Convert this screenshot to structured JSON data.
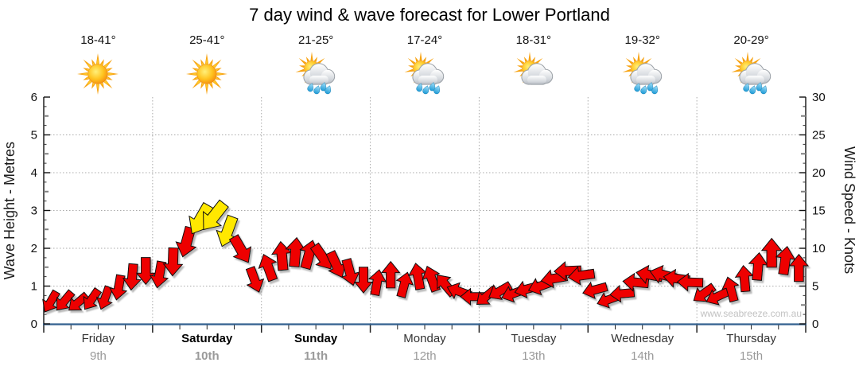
{
  "title": "7 day wind & wave forecast for Lower Portland",
  "watermark": "www.seabreeze.com.au",
  "forecast": [
    {
      "temp_range": "18-41°",
      "icon": "sunny",
      "day": "Friday",
      "date": "9th",
      "weekend": false
    },
    {
      "temp_range": "25-41°",
      "icon": "sunny",
      "day": "Saturday",
      "date": "10th",
      "weekend": true
    },
    {
      "temp_range": "21-25°",
      "icon": "showers",
      "day": "Sunday",
      "date": "11th",
      "weekend": true
    },
    {
      "temp_range": "17-24°",
      "icon": "showers",
      "day": "Monday",
      "date": "12th",
      "weekend": false
    },
    {
      "temp_range": "18-31°",
      "icon": "partly-cloudy",
      "day": "Tuesday",
      "date": "13th",
      "weekend": false
    },
    {
      "temp_range": "19-32°",
      "icon": "showers",
      "day": "Wednesday",
      "date": "14th",
      "weekend": false
    },
    {
      "temp_range": "20-29°",
      "icon": "showers",
      "day": "Thursday",
      "date": "15th",
      "weekend": false
    }
  ],
  "chart_data": {
    "type": "wind-arrow-forecast",
    "title": "7 day wind & wave forecast for Lower Portland",
    "y_left": {
      "label": "Wave Height - Metres",
      "min": 0,
      "max": 6,
      "ticks": [
        0,
        1,
        2,
        3,
        4,
        5,
        6
      ]
    },
    "y_right": {
      "label": "Wind Speed - Knots",
      "min": 0,
      "max": 30,
      "ticks": [
        0,
        5,
        10,
        15,
        20,
        25,
        30
      ]
    },
    "x_days": [
      "Friday 9th",
      "Saturday 10th",
      "Sunday 11th",
      "Monday 12th",
      "Tuesday 13th",
      "Wednesday 14th",
      "Thursday 15th"
    ],
    "grid": {
      "horizontal_dotted_at_metres": [
        1,
        2,
        3,
        4,
        5
      ],
      "vertical_dotted_at_day_boundaries": true
    },
    "points_per_day": 8,
    "wind_points_legend": "each point = [wind_speed_knots, arrow_direction_deg_clockwise_from_up, color r=red y=yellow(strong)]",
    "wind_points": [
      [
        2.9,
        210,
        "r"
      ],
      [
        3,
        220,
        "r"
      ],
      [
        2.8,
        230,
        "r"
      ],
      [
        3.2,
        215,
        "r"
      ],
      [
        3.4,
        200,
        "r"
      ],
      [
        4.8,
        190,
        "r"
      ],
      [
        6.2,
        185,
        "r"
      ],
      [
        7,
        180,
        "r"
      ],
      [
        6.5,
        190,
        "r"
      ],
      [
        8.2,
        182,
        "r"
      ],
      [
        10.8,
        195,
        "r"
      ],
      [
        13.8,
        210,
        "y"
      ],
      [
        14.2,
        218,
        "y"
      ],
      [
        12.2,
        200,
        "y"
      ],
      [
        9.8,
        150,
        "r"
      ],
      [
        5.8,
        160,
        "r"
      ],
      [
        7.5,
        340,
        "r"
      ],
      [
        9,
        355,
        "r"
      ],
      [
        9.5,
        5,
        "r"
      ],
      [
        9.2,
        15,
        "r"
      ],
      [
        8.8,
        145,
        "r"
      ],
      [
        7.8,
        155,
        "r"
      ],
      [
        6.8,
        165,
        "r"
      ],
      [
        5.8,
        180,
        "r"
      ],
      [
        5.5,
        10,
        "r"
      ],
      [
        6.5,
        0,
        "r"
      ],
      [
        5.2,
        15,
        "r"
      ],
      [
        6.3,
        350,
        "r"
      ],
      [
        6,
        340,
        "r"
      ],
      [
        5.2,
        320,
        "r"
      ],
      [
        4.3,
        290,
        "r"
      ],
      [
        3.6,
        270,
        "r"
      ],
      [
        3.6,
        230,
        "r"
      ],
      [
        4.3,
        240,
        "r"
      ],
      [
        4,
        250,
        "r"
      ],
      [
        4.6,
        255,
        "r"
      ],
      [
        5,
        250,
        "r"
      ],
      [
        6,
        260,
        "r"
      ],
      [
        7,
        268,
        "r"
      ],
      [
        6.4,
        262,
        "r"
      ],
      [
        4.5,
        255,
        "r"
      ],
      [
        3.2,
        250,
        "r"
      ],
      [
        4,
        265,
        "r"
      ],
      [
        5.5,
        275,
        "r"
      ],
      [
        6.5,
        280,
        "r"
      ],
      [
        6.5,
        285,
        "r"
      ],
      [
        6,
        278,
        "r"
      ],
      [
        5.5,
        272,
        "r"
      ],
      [
        4,
        235,
        "r"
      ],
      [
        3.6,
        245,
        "r"
      ],
      [
        4.6,
        345,
        "r"
      ],
      [
        6,
        355,
        "r"
      ],
      [
        7.6,
        5,
        "r"
      ],
      [
        9.4,
        0,
        "r"
      ],
      [
        8.4,
        8,
        "r"
      ],
      [
        7.4,
        0,
        "r"
      ]
    ],
    "colors": {
      "arrow_red": "#EE0000",
      "arrow_yellow": "#FFE800",
      "arrow_outline": "#111111",
      "bottom_axis": "#33608F",
      "gridline": "#AAAAAA",
      "tick_label": "#111111",
      "date_gray": "#9A9A9A",
      "watermark_gray": "#C2C2C2"
    }
  }
}
